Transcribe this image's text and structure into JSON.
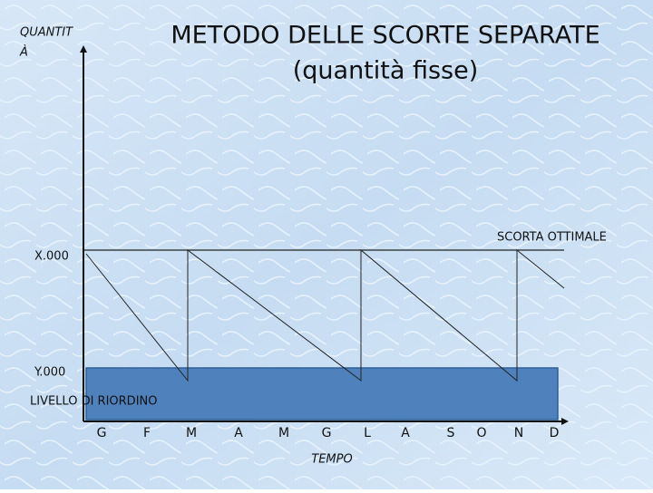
{
  "title": [
    "METODO DELLE SCORTE SEPARATE",
    "(quantità fisse)"
  ],
  "y_axis_label": [
    "QUANTIT",
    "À"
  ],
  "x_axis_label": "TEMPO",
  "levels": {
    "optimal_label": "SCORTA OTTIMALE",
    "optimal_value": "X.000",
    "reorder_value": "Y.000",
    "reorder_label": "LIVELLO DI RIORDINO"
  },
  "months": [
    "G",
    "F",
    "M",
    "A",
    "M",
    "G",
    "L",
    "A",
    "S",
    "O",
    "N",
    "D"
  ]
}
